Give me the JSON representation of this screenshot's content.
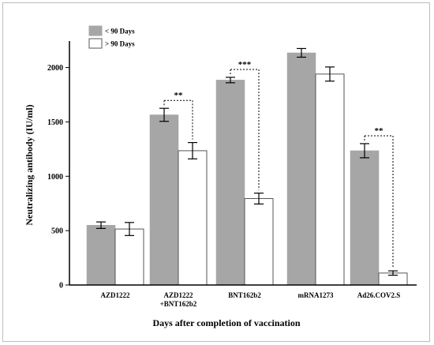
{
  "chart_data": {
    "type": "bar",
    "title": "",
    "xlabel": "Days after completion of vaccination",
    "ylabel": "Neutralizing antibody (IU/ml)",
    "ylim": [
      0,
      2200
    ],
    "yticks": [
      0,
      500,
      1000,
      1500,
      2000
    ],
    "grid": false,
    "legend_position": "top-left",
    "categories": [
      [
        "AZD1222"
      ],
      [
        "AZD1222",
        "+BNT162b2"
      ],
      [
        "BNT162b2"
      ],
      [
        "mRNA1273"
      ],
      [
        "Ad26.COV2.S"
      ]
    ],
    "series": [
      {
        "name": "< 90 Days",
        "color": "#a6a6a6",
        "values": [
          550,
          1565,
          1885,
          2135,
          1235
        ],
        "error": [
          30,
          60,
          25,
          40,
          65
        ]
      },
      {
        "name": "> 90 Days",
        "color": "#ffffff",
        "values": [
          515,
          1235,
          795,
          1940,
          110
        ],
        "error": [
          60,
          75,
          50,
          65,
          20
        ]
      }
    ],
    "annotations": [
      {
        "category_index": 1,
        "label": "**"
      },
      {
        "category_index": 2,
        "label": "***"
      },
      {
        "category_index": 4,
        "label": "**"
      }
    ]
  }
}
